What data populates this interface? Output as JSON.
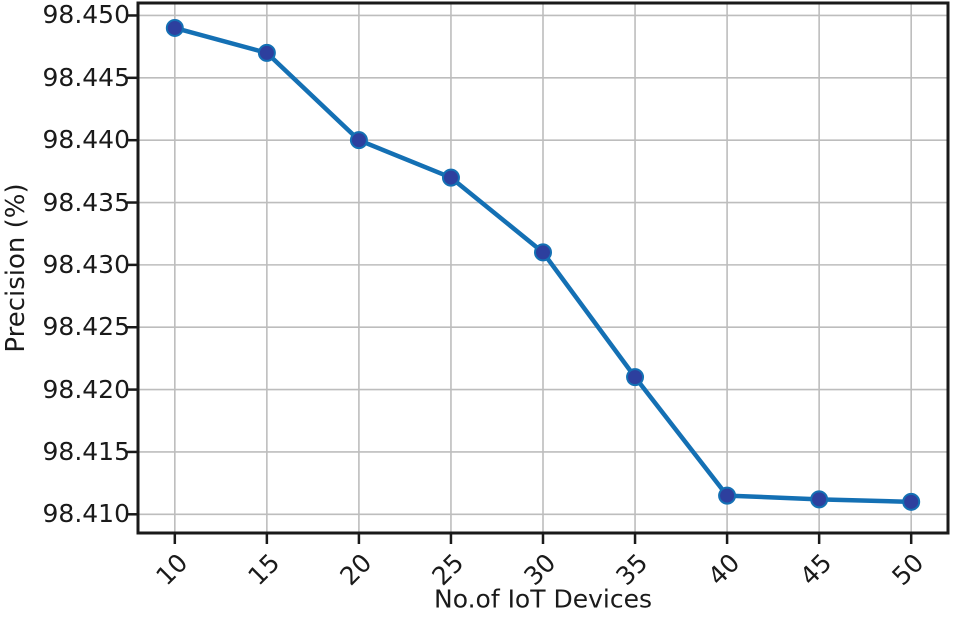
{
  "chart_data": {
    "type": "line",
    "x": [
      10,
      15,
      20,
      25,
      30,
      35,
      40,
      45,
      50
    ],
    "y": [
      98.449,
      98.447,
      98.44,
      98.437,
      98.431,
      98.421,
      98.4115,
      98.4112,
      98.411
    ],
    "title": "",
    "xlabel": "No.of IoT Devices",
    "ylabel": "Precision (%)",
    "xticks": [
      10,
      15,
      20,
      25,
      30,
      35,
      40,
      45,
      50
    ],
    "xtick_labels": [
      "10",
      "15",
      "20",
      "25",
      "30",
      "35",
      "40",
      "45",
      "50"
    ],
    "xtick_rotation_deg": 45,
    "yticks": [
      98.41,
      98.415,
      98.42,
      98.425,
      98.43,
      98.435,
      98.44,
      98.445,
      98.45
    ],
    "ytick_labels": [
      "98.410",
      "98.415",
      "98.420",
      "98.425",
      "98.430",
      "98.435",
      "98.440",
      "98.445",
      "98.450"
    ],
    "xlim": [
      8,
      52
    ],
    "ylim": [
      98.4085,
      98.451
    ],
    "grid": true,
    "legend": "none",
    "marker": "circle",
    "line_color": "#1470b4",
    "marker_color": "#2d3f9e",
    "grid_color": "#bdbdbd",
    "axis_color": "#1a1a1a",
    "text_color": "#1a1a1a",
    "background_color": "#ffffff"
  }
}
